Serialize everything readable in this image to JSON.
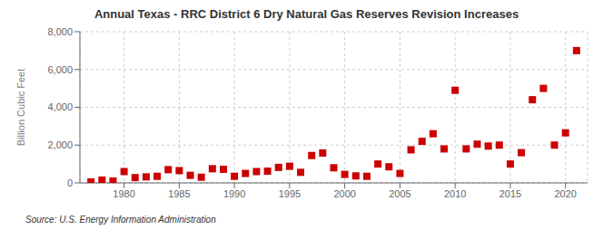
{
  "chart_data": {
    "type": "scatter",
    "title": "Annual Texas - RRC District 6 Dry Natural Gas Reserves Revision Increases",
    "y_label": "Billion Cubic Feet",
    "annotations": [
      "Source: U.S. Energy Information Administration"
    ],
    "x": [
      1977,
      1978,
      1979,
      1980,
      1981,
      1982,
      1983,
      1984,
      1985,
      1986,
      1987,
      1988,
      1989,
      1990,
      1991,
      1992,
      1993,
      1994,
      1995,
      1996,
      1997,
      1998,
      1999,
      2000,
      2001,
      2002,
      2003,
      2004,
      2005,
      2006,
      2007,
      2008,
      2009,
      2010,
      2011,
      2012,
      2013,
      2014,
      2015,
      2016,
      2017,
      2018,
      2019,
      2020,
      2021
    ],
    "values": [
      50,
      150,
      100,
      600,
      280,
      320,
      350,
      700,
      650,
      400,
      300,
      750,
      720,
      350,
      500,
      600,
      620,
      820,
      880,
      560,
      1450,
      1580,
      800,
      450,
      370,
      350,
      1000,
      850,
      500,
      1750,
      2200,
      2600,
      1800,
      4900,
      1800,
      2050,
      1950,
      2000,
      1000,
      1600,
      4400,
      5000,
      2000,
      2650,
      7000
    ],
    "color": "#cc0000",
    "marker": "square",
    "xlim": [
      1976,
      2022
    ],
    "xticks": [
      1980,
      1985,
      1990,
      1995,
      2000,
      2005,
      2010,
      2015,
      2020
    ],
    "ylim": [
      0,
      8000
    ],
    "yticks": [
      0,
      {
        "value": 2000,
        "label": "2,000"
      },
      {
        "value": 4000,
        "label": "4,000"
      },
      {
        "value": 6000,
        "label": "6,000"
      },
      {
        "value": 8000,
        "label": "8,000"
      }
    ],
    "grid": true
  }
}
